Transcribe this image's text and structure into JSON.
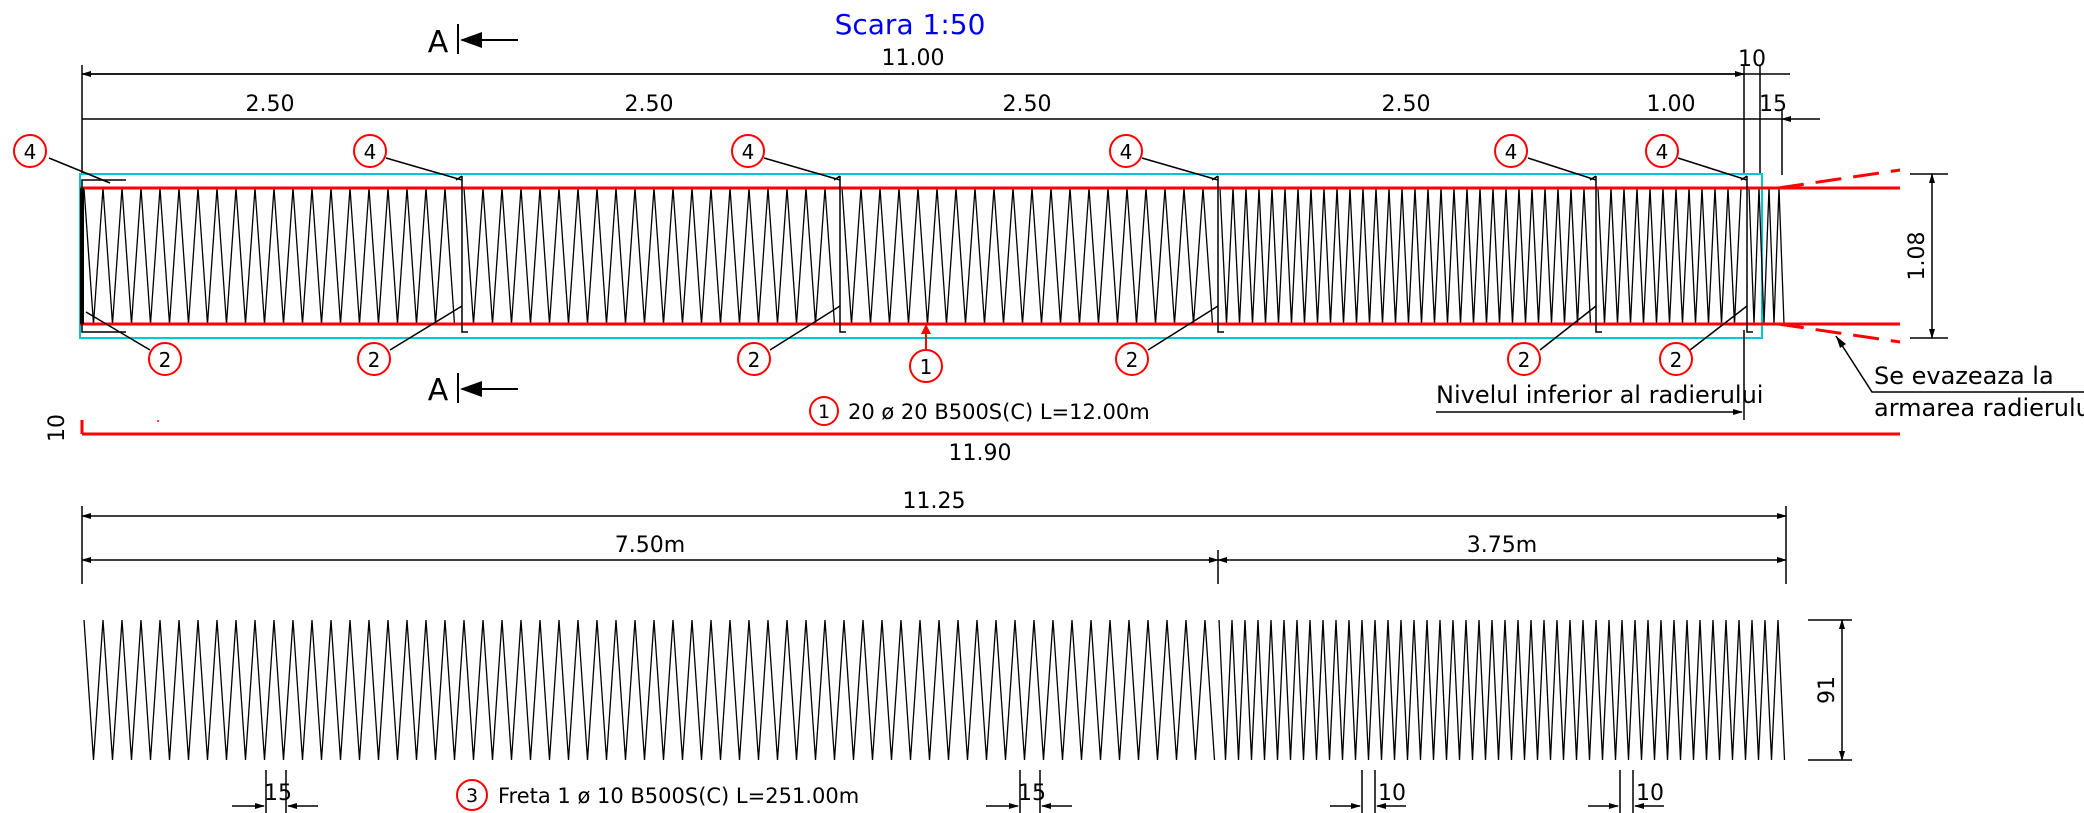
{
  "title": "Scara 1:50",
  "section_mark": "A",
  "top_dims": {
    "total": "11.00",
    "segments": [
      "2.50",
      "2.50",
      "2.50",
      "2.50",
      "1.00"
    ],
    "small_a": "10",
    "small_b": "15"
  },
  "height_dim": "1.08",
  "markers": {
    "m1": "1",
    "m2": "2",
    "m3": "3",
    "m4": "4"
  },
  "bar1_label": "20 ø 20 B500S(C) L=12.00m",
  "bar1_side_dim": "10",
  "bar1_length": "11.90",
  "note_evazare": [
    "Se evazeaza la",
    "armarea radierului"
  ],
  "note_nivel": "Nivelul inferior al radierului",
  "bottom_dims": {
    "total": "11.25",
    "part_a": "7.50m",
    "part_b": "3.75m"
  },
  "spiral_height": "91",
  "bottom_spacings": [
    "15",
    "15",
    "10",
    "10"
  ],
  "freta_label": "Freta 1 ø 10 B500S(C) L=251.00m",
  "colors": {
    "rebar": "#ff0000",
    "outline": "#00c8d8",
    "title": "#0000ee",
    "line": "#000000"
  }
}
